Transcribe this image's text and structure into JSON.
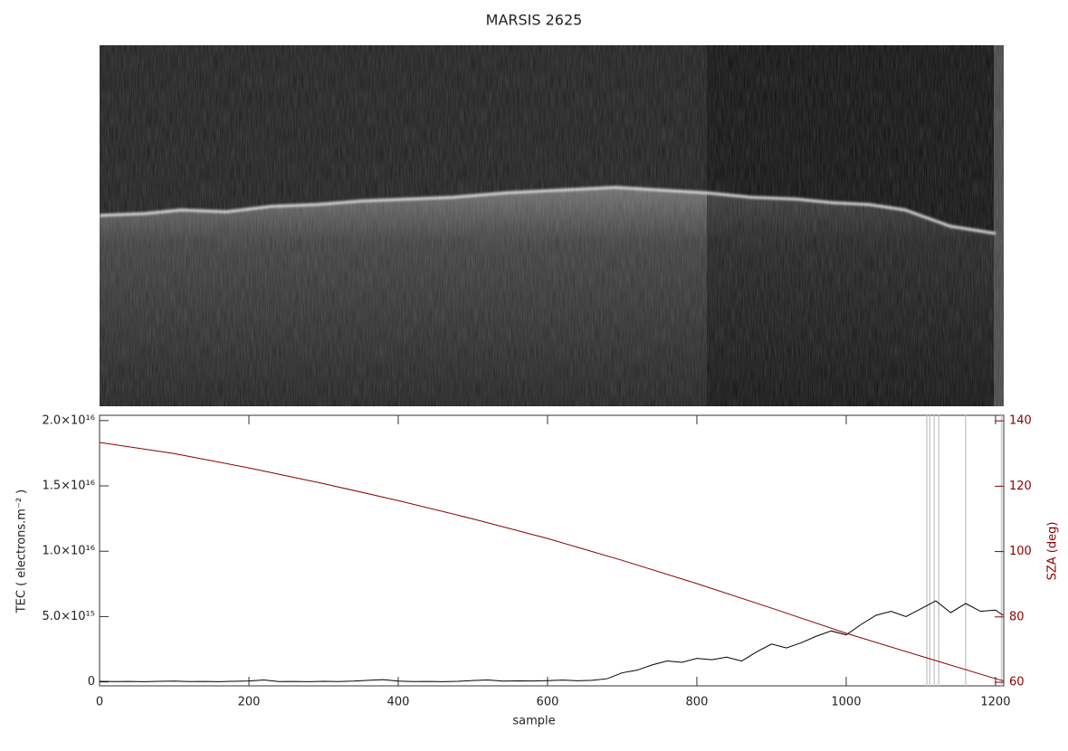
{
  "chart_data": {
    "type": "line",
    "title": "MARSIS 2625",
    "xlabel": "sample",
    "ylabel": "TEC ( electrons.m⁻² )",
    "y2label": "SZA (deg)",
    "xlim": [
      0,
      1211
    ],
    "xticks": [
      0,
      200,
      400,
      600,
      800,
      1000,
      1200
    ],
    "ylim": [
      -300000000000000.0,
      2.04e+16
    ],
    "yticks": [
      0,
      {
        "value": 5000000000000000.0,
        "label": "5.0×10¹⁵"
      },
      {
        "value": 1e+16,
        "label": "1.0×10¹⁶"
      },
      {
        "value": 1.5e+16,
        "label": "1.5×10¹⁶"
      },
      {
        "value": 2e+16,
        "label": "2.0×10¹⁶"
      }
    ],
    "y2lim": [
      58.9,
      141.7
    ],
    "y2ticks": [
      60,
      80,
      100,
      120,
      140
    ],
    "y2color": "#8b0000",
    "flagged_samples": [
      1108,
      1112,
      1118,
      1124,
      1160,
      1208
    ],
    "flag_color": "#cccccc",
    "series": [
      {
        "name": "TEC",
        "color": "#000000",
        "x": [
          0,
          20,
          40,
          60,
          80,
          100,
          120,
          140,
          160,
          180,
          200,
          220,
          240,
          260,
          280,
          300,
          320,
          340,
          360,
          380,
          400,
          420,
          440,
          460,
          480,
          500,
          520,
          540,
          560,
          580,
          600,
          620,
          640,
          660,
          680,
          700,
          720,
          740,
          760,
          780,
          800,
          820,
          840,
          860,
          880,
          900,
          920,
          940,
          960,
          980,
          1000,
          1020,
          1040,
          1060,
          1080,
          1100,
          1120,
          1140,
          1160,
          1180,
          1200,
          1210
        ],
        "values": [
          50000000000000.0,
          30000000000000.0,
          40000000000000.0,
          20000000000000.0,
          50000000000000.0,
          60000000000000.0,
          30000000000000.0,
          40000000000000.0,
          20000000000000.0,
          50000000000000.0,
          70000000000000.0,
          150000000000000.0,
          30000000000000.0,
          40000000000000.0,
          20000000000000.0,
          50000000000000.0,
          30000000000000.0,
          60000000000000.0,
          120000000000000.0,
          180000000000000.0,
          60000000000000.0,
          30000000000000.0,
          40000000000000.0,
          20000000000000.0,
          50000000000000.0,
          110000000000000.0,
          150000000000000.0,
          60000000000000.0,
          80000000000000.0,
          70000000000000.0,
          100000000000000.0,
          140000000000000.0,
          90000000000000.0,
          120000000000000.0,
          250000000000000.0,
          700000000000000.0,
          900000000000000.0,
          1300000000000000.0,
          1600000000000000.0,
          1500000000000000.0,
          1800000000000000.0,
          1700000000000000.0,
          1900000000000000.0,
          1600000000000000.0,
          2300000000000000.0,
          2900000000000000.0,
          2600000000000000.0,
          3000000000000000.0,
          3500000000000000.0,
          3900000000000000.0,
          3600000000000000.0,
          4400000000000000.0,
          5100000000000000.0,
          5400000000000000.0,
          5000000000000000.0,
          5600000000000000.0,
          6200000000000000.0,
          5300000000000000.0,
          6000000000000000.0,
          5400000000000000.0,
          5500000000000000.0,
          5100000000000000.0
        ]
      },
      {
        "name": "SZA",
        "color": "#8b0000",
        "axis": "y2",
        "x": [
          0,
          100,
          200,
          300,
          400,
          500,
          600,
          700,
          800,
          900,
          1000,
          1100,
          1200,
          1211
        ],
        "values": [
          133.4,
          130.0,
          125.6,
          120.8,
          115.6,
          110.0,
          104.0,
          97.3,
          90.2,
          82.7,
          75.0,
          68.0,
          61.1,
          60.4
        ]
      }
    ]
  }
}
